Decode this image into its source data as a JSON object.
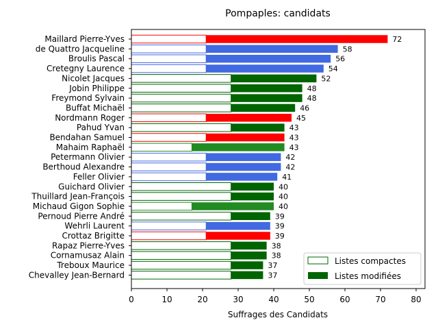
{
  "chart_data": {
    "type": "bar",
    "orientation": "horizontal",
    "stacked": true,
    "title": "Pompaples: candidats",
    "xlabel": "Suffrages des Candidats",
    "ylabel": "",
    "xlim": [
      0,
      83
    ],
    "xticks": [
      0,
      10,
      20,
      30,
      40,
      50,
      60,
      70,
      80
    ],
    "grid": false,
    "legend_position": "lower-right",
    "legend": [
      {
        "label": "Listes compactes",
        "style": "outline",
        "color": "#006400"
      },
      {
        "label": "Listes modifiées",
        "style": "filled",
        "color": "#006400"
      }
    ],
    "categories": [
      "Maillard Pierre-Yves",
      "de Quattro Jacqueline",
      "Broulis Pascal",
      "Cretegny Laurence",
      "Nicolet Jacques",
      "Jobin Philippe",
      "Freymond Sylvain",
      "Buffat Michaël",
      "Nordmann Roger",
      "Pahud Yvan",
      "Bendahan Samuel",
      "Mahaim Raphaël",
      "Petermann Olivier",
      "Berthoud Alexandre",
      "Feller Olivier",
      "Guichard Olivier",
      "Thuillard Jean-François",
      "Michaud Gigon Sophie",
      "Pernoud Pierre André",
      "Wehrli Laurent",
      "Crottaz Brigitte",
      "Rapaz Pierre-Yves",
      "Cornamusaz Alain",
      "Treboux Maurice",
      "Chevalley Jean-Bernard"
    ],
    "series": [
      {
        "name": "Listes compactes",
        "values": [
          21,
          21,
          21,
          21,
          28,
          28,
          28,
          28,
          21,
          28,
          21,
          17,
          21,
          21,
          21,
          28,
          28,
          17,
          28,
          21,
          21,
          28,
          28,
          28,
          28
        ]
      },
      {
        "name": "Listes modifiées",
        "values": [
          51,
          37,
          35,
          33,
          24,
          20,
          20,
          18,
          24,
          15,
          22,
          26,
          21,
          21,
          20,
          12,
          12,
          23,
          11,
          18,
          18,
          10,
          10,
          9,
          9
        ]
      }
    ],
    "totals": [
      72,
      58,
      56,
      54,
      52,
      48,
      48,
      46,
      45,
      43,
      43,
      43,
      42,
      42,
      41,
      40,
      40,
      40,
      39,
      39,
      39,
      38,
      38,
      37,
      37
    ],
    "colors": [
      "#ff0000",
      "#4169e1",
      "#4169e1",
      "#4169e1",
      "#006400",
      "#006400",
      "#006400",
      "#006400",
      "#ff0000",
      "#006400",
      "#ff0000",
      "#228b22",
      "#4169e1",
      "#4169e1",
      "#4169e1",
      "#006400",
      "#006400",
      "#228b22",
      "#006400",
      "#4169e1",
      "#ff0000",
      "#006400",
      "#006400",
      "#006400",
      "#006400"
    ]
  }
}
